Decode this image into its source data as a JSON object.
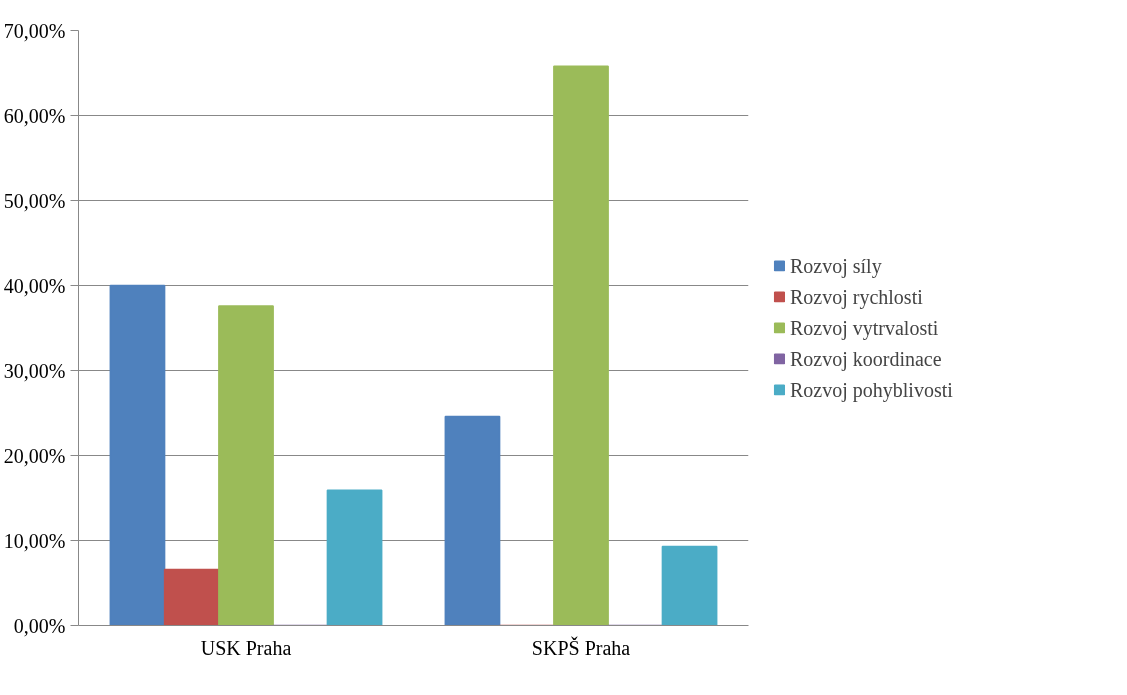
{
  "chart_data": {
    "type": "bar",
    "categories": [
      "USK Praha",
      "SKPŠ Praha"
    ],
    "series": [
      {
        "name": "Rozvoj síly",
        "color": "#4f81bd",
        "values": [
          40,
          24.6
        ]
      },
      {
        "name": "Rozvoj rychlosti",
        "color": "#c0504d",
        "values": [
          6.6,
          0
        ]
      },
      {
        "name": "Rozvoj vytrvalosti",
        "color": "#9bbb59",
        "values": [
          37.6,
          65.8
        ]
      },
      {
        "name": "Rozvoj koordinace",
        "color": "#8064a2",
        "values": [
          0,
          0
        ]
      },
      {
        "name": "Rozvoj pohyblivosti",
        "color": "#4bacc6",
        "values": [
          15.9,
          9.3
        ]
      }
    ],
    "ylim": [
      0,
      70
    ],
    "yticks": [
      {
        "value": 0,
        "label": "0,00%"
      },
      {
        "value": 10,
        "label": "10,00%"
      },
      {
        "value": 20,
        "label": "20,00%"
      },
      {
        "value": 30,
        "label": "30,00%"
      },
      {
        "value": 40,
        "label": "40,00%"
      },
      {
        "value": 50,
        "label": "50,00%"
      },
      {
        "value": 60,
        "label": "60,00%"
      },
      {
        "value": 70,
        "label": "70,00%"
      }
    ],
    "grid": "y",
    "legend": "right"
  }
}
